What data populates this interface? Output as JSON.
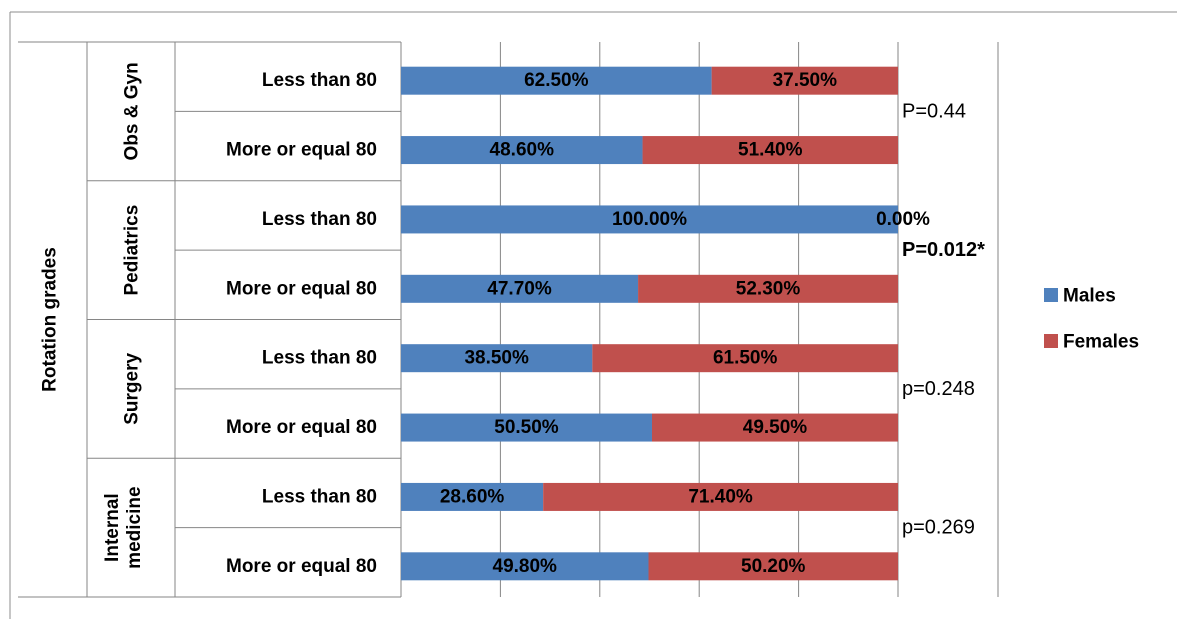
{
  "chart_data": {
    "type": "bar",
    "stacked": true,
    "percent_stacked": true,
    "orientation": "horizontal",
    "axis_title": "Rotation grades",
    "groups": [
      {
        "name": "Obs & Gyn",
        "categories": [
          "Less than 80",
          "More or equal 80"
        ],
        "males": [
          62.5,
          48.6
        ],
        "females": [
          37.5,
          51.4
        ],
        "male_labels": [
          "62.50%",
          "48.60%"
        ],
        "female_labels": [
          "37.50%",
          "51.40%"
        ],
        "p_value": "P=0.44",
        "p_bold": false
      },
      {
        "name": "Pediatrics",
        "categories": [
          "Less than 80",
          "More or equal 80"
        ],
        "males": [
          100.0,
          47.7
        ],
        "females": [
          0.0,
          52.3
        ],
        "male_labels": [
          "100.00%",
          "47.70%"
        ],
        "female_labels": [
          "0.00%",
          "52.30%"
        ],
        "p_value": "P=0.012*",
        "p_bold": true
      },
      {
        "name": "Surgery",
        "categories": [
          "Less than 80",
          "More or equal 80"
        ],
        "males": [
          38.5,
          50.5
        ],
        "females": [
          61.5,
          49.5
        ],
        "male_labels": [
          "38.50%",
          "50.50%"
        ],
        "female_labels": [
          "61.50%",
          "49.50%"
        ],
        "p_value": "p=0.248",
        "p_bold": false
      },
      {
        "name": "Internal medicine",
        "categories": [
          "Less than 80",
          "More or equal 80"
        ],
        "males": [
          28.6,
          49.8
        ],
        "females": [
          71.4,
          50.2
        ],
        "male_labels": [
          "28.60%",
          "49.80%"
        ],
        "female_labels": [
          "71.40%",
          "50.20%"
        ],
        "p_value": "p=0.269",
        "p_bold": false
      }
    ],
    "series": [
      {
        "name": "Males",
        "color": "#4F81BD"
      },
      {
        "name": "Females",
        "color": "#C0504D"
      }
    ],
    "xlim": [
      0,
      100
    ],
    "grid": true,
    "legend_position": "right"
  }
}
